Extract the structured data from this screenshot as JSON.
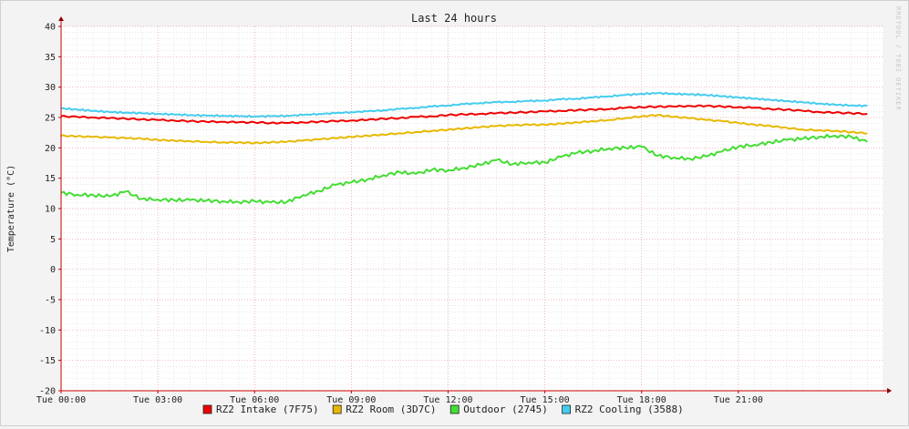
{
  "chart_data": {
    "type": "line",
    "title": "Last 24 hours",
    "ylabel": "Temperature (°C)",
    "xlabel": "",
    "credit": "RRDTOOL / TOBI OETIKER",
    "ylim": [
      -20,
      40
    ],
    "yticks": [
      -20,
      -15,
      -10,
      -5,
      0,
      5,
      10,
      15,
      20,
      25,
      30,
      35,
      40
    ],
    "xlim": [
      0,
      25.5
    ],
    "xticks": [
      {
        "x": 0,
        "label": "Tue 00:00"
      },
      {
        "x": 3,
        "label": "Tue 03:00"
      },
      {
        "x": 6,
        "label": "Tue 06:00"
      },
      {
        "x": 9,
        "label": "Tue 09:00"
      },
      {
        "x": 12,
        "label": "Tue 12:00"
      },
      {
        "x": 15,
        "label": "Tue 15:00"
      },
      {
        "x": 18,
        "label": "Tue 18:00"
      },
      {
        "x": 21,
        "label": "Tue 21:00"
      }
    ],
    "grid": true,
    "legend_position": "bottom",
    "x": [
      0,
      0.5,
      1,
      1.5,
      2,
      2.5,
      3,
      3.5,
      4,
      4.5,
      5,
      5.5,
      6,
      6.5,
      7,
      7.5,
      8,
      8.5,
      9,
      9.5,
      10,
      10.5,
      11,
      11.5,
      12,
      12.5,
      13,
      13.5,
      14,
      14.5,
      15,
      15.5,
      16,
      16.5,
      17,
      17.5,
      18,
      18.5,
      19,
      19.5,
      20,
      20.5,
      21,
      21.5,
      22,
      22.5,
      23,
      23.5,
      24,
      24.5,
      25
    ],
    "series": [
      {
        "name": "RZ2 Intake (7F75)",
        "color": "#ee0000",
        "values": [
          25.2,
          25.1,
          25.0,
          24.9,
          24.8,
          24.7,
          24.6,
          24.5,
          24.4,
          24.3,
          24.3,
          24.2,
          24.2,
          24.1,
          24.1,
          24.2,
          24.3,
          24.4,
          24.5,
          24.6,
          24.8,
          24.9,
          25.1,
          25.2,
          25.4,
          25.5,
          25.6,
          25.7,
          25.8,
          25.9,
          26.0,
          26.1,
          26.2,
          26.3,
          26.4,
          26.6,
          26.7,
          26.8,
          26.8,
          26.9,
          26.9,
          26.8,
          26.7,
          26.6,
          26.4,
          26.3,
          26.1,
          25.9,
          25.8,
          25.7,
          25.6
        ]
      },
      {
        "name": "RZ2 Room (3D7C)",
        "color": "#e8b800",
        "values": [
          22.0,
          21.9,
          21.8,
          21.7,
          21.6,
          21.5,
          21.3,
          21.2,
          21.1,
          21.0,
          20.9,
          20.9,
          20.8,
          20.9,
          21.0,
          21.2,
          21.4,
          21.6,
          21.8,
          22.0,
          22.2,
          22.4,
          22.6,
          22.8,
          23.0,
          23.2,
          23.4,
          23.6,
          23.7,
          23.8,
          23.8,
          24.0,
          24.2,
          24.4,
          24.6,
          24.9,
          25.2,
          25.4,
          25.1,
          24.9,
          24.6,
          24.4,
          24.1,
          23.8,
          23.6,
          23.3,
          23.0,
          22.9,
          22.8,
          22.6,
          22.4
        ]
      },
      {
        "name": "Outdoor (2745)",
        "color": "#44dd33",
        "values": [
          12.6,
          12.3,
          12.2,
          12.0,
          12.8,
          11.6,
          11.5,
          11.4,
          11.4,
          11.3,
          11.2,
          11.1,
          11.2,
          11.0,
          11.1,
          12.2,
          12.9,
          13.9,
          14.3,
          14.8,
          15.5,
          16.0,
          15.7,
          16.4,
          16.3,
          16.7,
          17.2,
          18.0,
          17.3,
          17.6,
          17.6,
          18.5,
          19.2,
          19.5,
          19.9,
          20.0,
          20.2,
          18.7,
          18.4,
          18.2,
          18.6,
          19.4,
          20.2,
          20.5,
          20.9,
          21.3,
          21.5,
          21.8,
          22.0,
          21.8,
          21.0
        ]
      },
      {
        "name": "RZ2 Cooling (3588)",
        "color": "#44ccee",
        "values": [
          26.5,
          26.3,
          26.1,
          25.9,
          25.8,
          25.7,
          25.6,
          25.5,
          25.4,
          25.3,
          25.3,
          25.2,
          25.2,
          25.2,
          25.3,
          25.4,
          25.6,
          25.7,
          25.9,
          26.0,
          26.2,
          26.4,
          26.6,
          26.8,
          27.0,
          27.2,
          27.4,
          27.5,
          27.6,
          27.7,
          27.8,
          28.0,
          28.1,
          28.3,
          28.5,
          28.7,
          28.9,
          29.0,
          28.9,
          28.8,
          28.7,
          28.5,
          28.3,
          28.1,
          27.9,
          27.7,
          27.5,
          27.3,
          27.1,
          27.0,
          26.9
        ]
      }
    ]
  }
}
